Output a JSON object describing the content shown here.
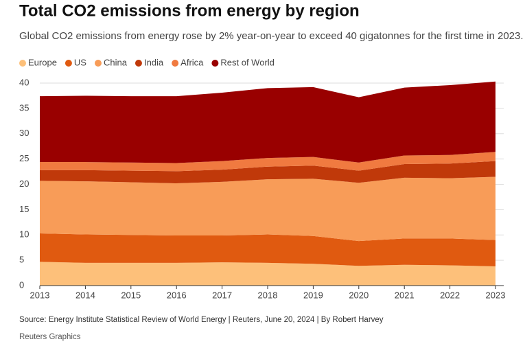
{
  "chart_data": {
    "type": "stacked_area",
    "title": "Total CO2 emissions from energy by region",
    "subtitle": "Global CO2 emissions from energy rose by 2% year-on-year to exceed 40 gigatonnes for the first time in 2023.",
    "categories": [
      "2013",
      "2014",
      "2015",
      "2016",
      "2017",
      "2018",
      "2019",
      "2020",
      "2021",
      "2022",
      "2023"
    ],
    "series": [
      {
        "name": "Europe",
        "color": "#fdc07a",
        "values": [
          4.7,
          4.5,
          4.5,
          4.5,
          4.6,
          4.5,
          4.3,
          3.9,
          4.1,
          4.0,
          3.8
        ]
      },
      {
        "name": "US",
        "color": "#e05a10",
        "values": [
          5.6,
          5.6,
          5.5,
          5.4,
          5.3,
          5.6,
          5.5,
          4.9,
          5.2,
          5.3,
          5.2
        ]
      },
      {
        "name": "China",
        "color": "#f89c58",
        "values": [
          10.4,
          10.5,
          10.4,
          10.3,
          10.6,
          10.9,
          11.3,
          11.5,
          12.0,
          11.9,
          12.5
        ]
      },
      {
        "name": "India",
        "color": "#c0390a",
        "values": [
          2.1,
          2.2,
          2.3,
          2.4,
          2.4,
          2.5,
          2.6,
          2.4,
          2.7,
          2.9,
          3.1
        ]
      },
      {
        "name": "Africa",
        "color": "#f07a40",
        "values": [
          1.6,
          1.6,
          1.6,
          1.6,
          1.7,
          1.7,
          1.7,
          1.6,
          1.7,
          1.7,
          1.8
        ]
      },
      {
        "name": "Rest of World",
        "color": "#990000",
        "values": [
          13.0,
          13.1,
          13.1,
          13.2,
          13.5,
          13.8,
          13.8,
          12.9,
          13.4,
          13.8,
          13.9
        ]
      }
    ],
    "ylim": [
      0,
      40
    ],
    "yticks": [
      0,
      5,
      10,
      15,
      20,
      25,
      30,
      35,
      40
    ],
    "grid": true,
    "legend": "top-left",
    "source": "Source: Energy Institute Statistical Review of World Energy | Reuters, June 20, 2024 | By Robert Harvey",
    "credit": "Reuters Graphics"
  }
}
